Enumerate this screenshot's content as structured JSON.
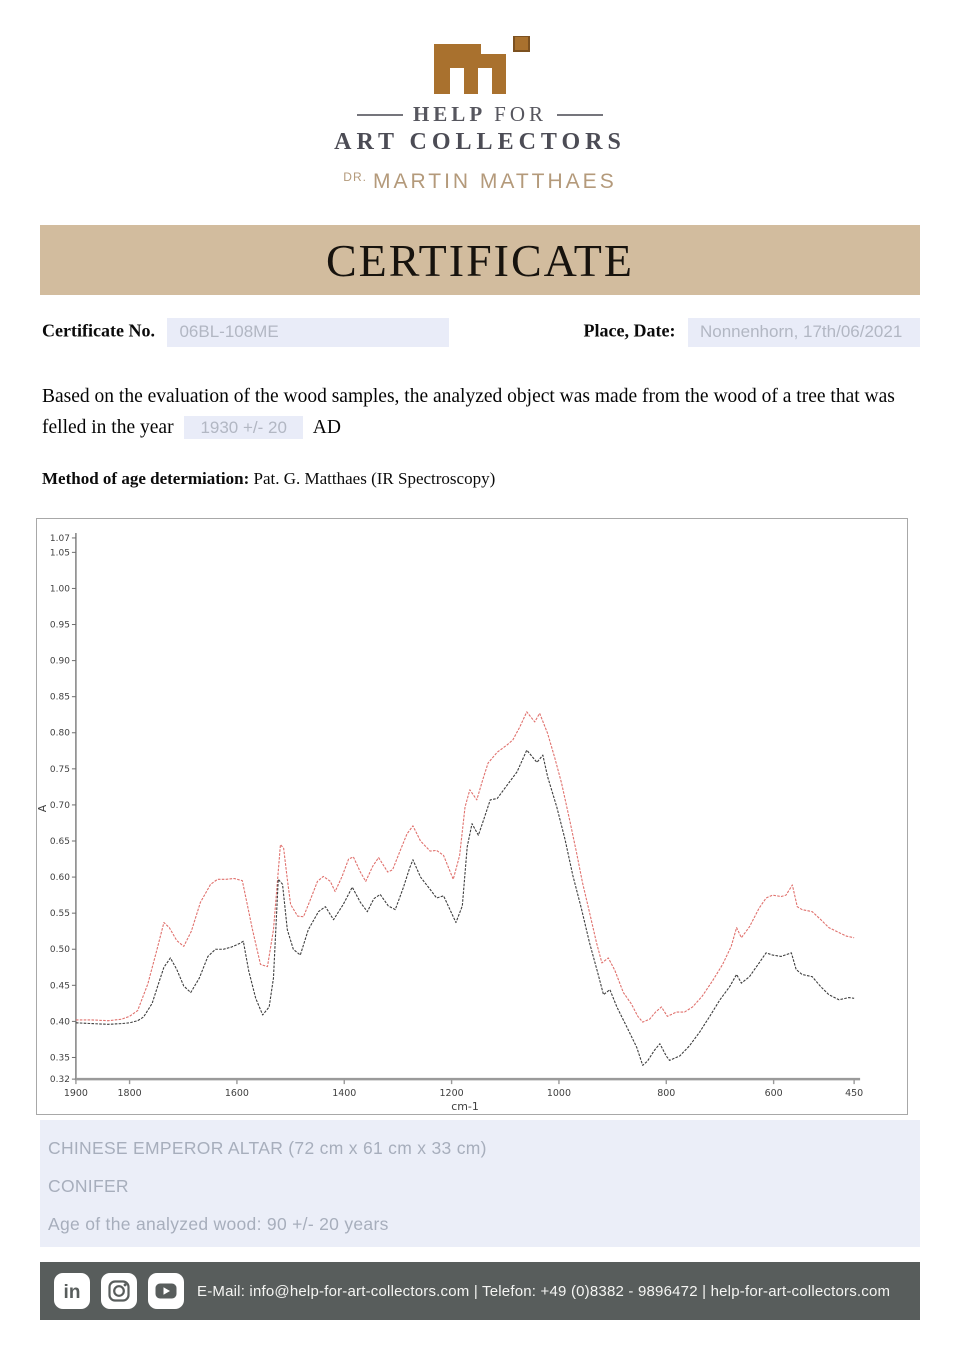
{
  "brand": {
    "line1_strong": "HELP",
    "line1_rest": "FOR",
    "line2": "ART COLLECTORS",
    "line3_prefix": "DR.",
    "line3_name": "MARTIN MATTHAES",
    "logo_color": "#a9712e"
  },
  "banner": {
    "title": "CERTIFICATE",
    "bg": "#d2bc9e"
  },
  "fields": {
    "certificate_no_label": "Certificate No.",
    "certificate_no_value": "06BL-108ME",
    "place_date_label": "Place, Date:",
    "place_date_value": "Nonnenhorn, 17th/06/2021"
  },
  "statement": {
    "text_before": "Based on the evaluation of the wood samples, the analyzed object was made from the wood of a tree that was felled in the year",
    "year_value": "1930 +/- 20",
    "text_after": "AD"
  },
  "method": {
    "label": "Method of age determiation:",
    "value": " Pat. G. Matthaes (IR Spectroscopy)"
  },
  "chart_data": {
    "type": "line",
    "title": "",
    "xlabel": "cm-1",
    "ylabel": "A",
    "x_reversed": true,
    "xlim": [
      1900,
      450
    ],
    "ylim": [
      0.32,
      1.07
    ],
    "x_ticks": [
      1900,
      1800,
      1600,
      1400,
      1200,
      1000,
      800,
      600,
      450
    ],
    "y_ticks": [
      1.07,
      1.05,
      1.0,
      0.95,
      0.9,
      0.85,
      0.8,
      0.75,
      0.7,
      0.65,
      0.6,
      0.55,
      0.5,
      0.45,
      0.4,
      0.35,
      0.32
    ],
    "grid": false,
    "legend": "none",
    "series": [
      {
        "id": "red-spectrum",
        "color": "#e0716d",
        "points": [
          [
            1900,
            0.402
          ],
          [
            1870,
            0.402
          ],
          [
            1840,
            0.401
          ],
          [
            1815,
            0.403
          ],
          [
            1800,
            0.407
          ],
          [
            1785,
            0.415
          ],
          [
            1766,
            0.452
          ],
          [
            1751,
            0.494
          ],
          [
            1736,
            0.537
          ],
          [
            1726,
            0.53
          ],
          [
            1712,
            0.512
          ],
          [
            1699,
            0.504
          ],
          [
            1685,
            0.525
          ],
          [
            1668,
            0.565
          ],
          [
            1649,
            0.59
          ],
          [
            1636,
            0.597
          ],
          [
            1620,
            0.597
          ],
          [
            1605,
            0.598
          ],
          [
            1590,
            0.595
          ],
          [
            1571,
            0.527
          ],
          [
            1556,
            0.479
          ],
          [
            1543,
            0.476
          ],
          [
            1532,
            0.527
          ],
          [
            1519,
            0.645
          ],
          [
            1513,
            0.64
          ],
          [
            1506,
            0.597
          ],
          [
            1500,
            0.562
          ],
          [
            1487,
            0.546
          ],
          [
            1476,
            0.545
          ],
          [
            1463,
            0.569
          ],
          [
            1450,
            0.594
          ],
          [
            1439,
            0.601
          ],
          [
            1426,
            0.594
          ],
          [
            1417,
            0.58
          ],
          [
            1404,
            0.601
          ],
          [
            1392,
            0.625
          ],
          [
            1383,
            0.628
          ],
          [
            1370,
            0.607
          ],
          [
            1360,
            0.594
          ],
          [
            1347,
            0.615
          ],
          [
            1336,
            0.627
          ],
          [
            1319,
            0.607
          ],
          [
            1310,
            0.61
          ],
          [
            1295,
            0.638
          ],
          [
            1283,
            0.66
          ],
          [
            1272,
            0.671
          ],
          [
            1258,
            0.65
          ],
          [
            1240,
            0.636
          ],
          [
            1228,
            0.637
          ],
          [
            1215,
            0.63
          ],
          [
            1197,
            0.597
          ],
          [
            1185,
            0.63
          ],
          [
            1175,
            0.697
          ],
          [
            1166,
            0.721
          ],
          [
            1153,
            0.707
          ],
          [
            1142,
            0.735
          ],
          [
            1132,
            0.758
          ],
          [
            1115,
            0.773
          ],
          [
            1097,
            0.783
          ],
          [
            1086,
            0.79
          ],
          [
            1073,
            0.808
          ],
          [
            1060,
            0.829
          ],
          [
            1045,
            0.815
          ],
          [
            1036,
            0.827
          ],
          [
            1021,
            0.799
          ],
          [
            1008,
            0.766
          ],
          [
            995,
            0.73
          ],
          [
            980,
            0.679
          ],
          [
            967,
            0.633
          ],
          [
            956,
            0.592
          ],
          [
            943,
            0.551
          ],
          [
            930,
            0.509
          ],
          [
            920,
            0.481
          ],
          [
            908,
            0.488
          ],
          [
            896,
            0.471
          ],
          [
            880,
            0.44
          ],
          [
            865,
            0.424
          ],
          [
            853,
            0.407
          ],
          [
            844,
            0.399
          ],
          [
            831,
            0.403
          ],
          [
            820,
            0.413
          ],
          [
            809,
            0.42
          ],
          [
            798,
            0.407
          ],
          [
            789,
            0.41
          ],
          [
            781,
            0.413
          ],
          [
            766,
            0.413
          ],
          [
            751,
            0.42
          ],
          [
            733,
            0.435
          ],
          [
            714,
            0.456
          ],
          [
            695,
            0.479
          ],
          [
            679,
            0.504
          ],
          [
            669,
            0.53
          ],
          [
            660,
            0.516
          ],
          [
            645,
            0.531
          ],
          [
            627,
            0.557
          ],
          [
            614,
            0.571
          ],
          [
            602,
            0.575
          ],
          [
            586,
            0.573
          ],
          [
            577,
            0.575
          ],
          [
            565,
            0.589
          ],
          [
            556,
            0.559
          ],
          [
            547,
            0.555
          ],
          [
            528,
            0.552
          ],
          [
            512,
            0.541
          ],
          [
            497,
            0.53
          ],
          [
            478,
            0.523
          ],
          [
            464,
            0.518
          ],
          [
            450,
            0.516
          ]
        ]
      },
      {
        "id": "black-spectrum",
        "color": "#3e3e3e",
        "points": [
          [
            1900,
            0.398
          ],
          [
            1870,
            0.397
          ],
          [
            1840,
            0.396
          ],
          [
            1815,
            0.397
          ],
          [
            1800,
            0.398
          ],
          [
            1785,
            0.401
          ],
          [
            1774,
            0.406
          ],
          [
            1758,
            0.425
          ],
          [
            1745,
            0.455
          ],
          [
            1736,
            0.475
          ],
          [
            1724,
            0.488
          ],
          [
            1712,
            0.472
          ],
          [
            1699,
            0.449
          ],
          [
            1686,
            0.44
          ],
          [
            1670,
            0.46
          ],
          [
            1654,
            0.49
          ],
          [
            1640,
            0.5
          ],
          [
            1625,
            0.5
          ],
          [
            1610,
            0.503
          ],
          [
            1595,
            0.508
          ],
          [
            1588,
            0.511
          ],
          [
            1578,
            0.47
          ],
          [
            1565,
            0.432
          ],
          [
            1552,
            0.409
          ],
          [
            1540,
            0.42
          ],
          [
            1532,
            0.46
          ],
          [
            1523,
            0.597
          ],
          [
            1515,
            0.59
          ],
          [
            1506,
            0.527
          ],
          [
            1495,
            0.5
          ],
          [
            1482,
            0.492
          ],
          [
            1467,
            0.527
          ],
          [
            1448,
            0.552
          ],
          [
            1435,
            0.559
          ],
          [
            1420,
            0.541
          ],
          [
            1402,
            0.562
          ],
          [
            1385,
            0.586
          ],
          [
            1370,
            0.565
          ],
          [
            1357,
            0.552
          ],
          [
            1345,
            0.57
          ],
          [
            1333,
            0.576
          ],
          [
            1318,
            0.56
          ],
          [
            1305,
            0.555
          ],
          [
            1290,
            0.585
          ],
          [
            1278,
            0.613
          ],
          [
            1272,
            0.624
          ],
          [
            1258,
            0.6
          ],
          [
            1240,
            0.583
          ],
          [
            1228,
            0.571
          ],
          [
            1215,
            0.574
          ],
          [
            1192,
            0.537
          ],
          [
            1180,
            0.56
          ],
          [
            1171,
            0.642
          ],
          [
            1162,
            0.674
          ],
          [
            1150,
            0.658
          ],
          [
            1140,
            0.68
          ],
          [
            1128,
            0.707
          ],
          [
            1115,
            0.709
          ],
          [
            1097,
            0.727
          ],
          [
            1078,
            0.746
          ],
          [
            1060,
            0.776
          ],
          [
            1041,
            0.759
          ],
          [
            1030,
            0.769
          ],
          [
            1021,
            0.739
          ],
          [
            1004,
            0.697
          ],
          [
            989,
            0.653
          ],
          [
            974,
            0.602
          ],
          [
            958,
            0.556
          ],
          [
            943,
            0.509
          ],
          [
            928,
            0.468
          ],
          [
            917,
            0.437
          ],
          [
            905,
            0.444
          ],
          [
            892,
            0.42
          ],
          [
            874,
            0.393
          ],
          [
            855,
            0.364
          ],
          [
            844,
            0.339
          ],
          [
            835,
            0.345
          ],
          [
            822,
            0.36
          ],
          [
            812,
            0.369
          ],
          [
            800,
            0.352
          ],
          [
            794,
            0.346
          ],
          [
            775,
            0.352
          ],
          [
            757,
            0.366
          ],
          [
            738,
            0.385
          ],
          [
            719,
            0.407
          ],
          [
            700,
            0.43
          ],
          [
            682,
            0.448
          ],
          [
            669,
            0.465
          ],
          [
            660,
            0.453
          ],
          [
            645,
            0.462
          ],
          [
            627,
            0.481
          ],
          [
            614,
            0.495
          ],
          [
            602,
            0.492
          ],
          [
            586,
            0.49
          ],
          [
            567,
            0.495
          ],
          [
            558,
            0.472
          ],
          [
            547,
            0.465
          ],
          [
            528,
            0.462
          ],
          [
            512,
            0.448
          ],
          [
            497,
            0.437
          ],
          [
            478,
            0.43
          ],
          [
            460,
            0.433
          ],
          [
            450,
            0.432
          ]
        ]
      }
    ]
  },
  "info_box": {
    "lines": [
      "CHINESE EMPEROR ALTAR (72 cm x 61 cm x 33 cm)",
      "CONIFER",
      "Age of the analyzed wood: 90 +/- 20 years"
    ]
  },
  "footer": {
    "icons": [
      "linkedin-icon",
      "instagram-icon",
      "youtube-icon"
    ],
    "contact": "E-Mail: info@help-for-art-collectors.com | Telefon: +49 (0)8382 - 9896472 | help-for-art-collectors.com",
    "bg": "#585d5c"
  }
}
